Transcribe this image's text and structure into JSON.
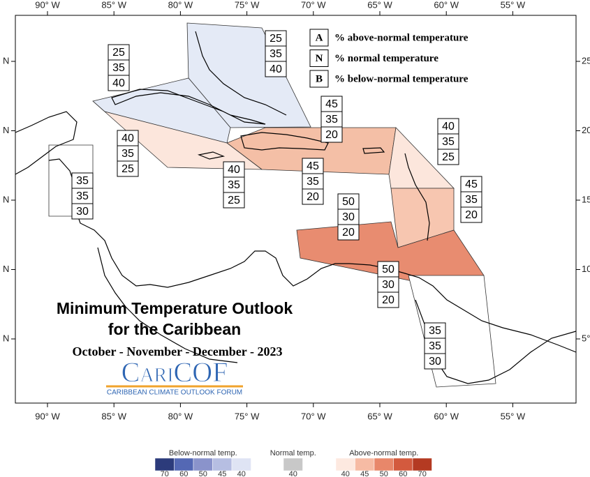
{
  "map": {
    "lon_labels": [
      "90° W",
      "85° W",
      "80° W",
      "75° W",
      "70° W",
      "65° W",
      "60° W",
      "55° W"
    ],
    "lat_labels_left": [
      "N",
      "N",
      "N",
      "N",
      "N"
    ],
    "lat_labels_right": [
      "25",
      "20",
      "15",
      "10",
      "5°"
    ],
    "key": [
      {
        "letter": "A",
        "text": "% above-normal temperature"
      },
      {
        "letter": "N",
        "text": "% normal temperature"
      },
      {
        "letter": "B",
        "text": "% below-normal temperature"
      }
    ],
    "regions": [
      {
        "values": [
          25,
          35,
          40
        ],
        "color": "#e4eaf6"
      },
      {
        "values": [
          25,
          35,
          40
        ],
        "color": "#e4eaf6"
      },
      {
        "values": [
          45,
          35,
          20
        ],
        "color": "#f4bfa6"
      },
      {
        "values": [
          40,
          35,
          25
        ],
        "color": "#fce6dc"
      },
      {
        "values": [
          40,
          35,
          25
        ],
        "color": "#fce6dc"
      },
      {
        "values": [
          40,
          35,
          25
        ],
        "color": "#fce6dc"
      },
      {
        "values": [
          45,
          35,
          20
        ],
        "color": "#f4bfa6"
      },
      {
        "values": [
          35,
          35,
          30
        ],
        "color": "#ffffff"
      },
      {
        "values": [
          45,
          35,
          20
        ],
        "color": "#f7c6b0"
      },
      {
        "values": [
          50,
          30,
          20
        ],
        "color": "#e88c70"
      },
      {
        "values": [
          50,
          30,
          20
        ],
        "color": "#e88c70"
      },
      {
        "values": [
          35,
          35,
          30
        ],
        "color": "#ffffff"
      }
    ],
    "title": "Minimum Temperature Outlook",
    "subtitle": "for the Caribbean",
    "period": "October - November - December - 2023",
    "logo": {
      "name": "CariCOF",
      "tagline": "CARIBBEAN CLIMATE OUTLOOK FORUM"
    },
    "colorbar": [
      {
        "label": "Below-normal temp.",
        "ticks": [
          70,
          60,
          50,
          45,
          40
        ],
        "colors": [
          "#2c3b7b",
          "#5468b4",
          "#8a93cb",
          "#b6bee2",
          "#dfe4f4"
        ]
      },
      {
        "label": "Normal temp.",
        "ticks": [
          40
        ],
        "colors": [
          "#c8c8c8"
        ]
      },
      {
        "label": "Above-normal temp.",
        "ticks": [
          40,
          45,
          50,
          60,
          70
        ],
        "colors": [
          "#fde9e0",
          "#f6bba4",
          "#e8876a",
          "#d35a3e",
          "#b43a22"
        ]
      }
    ]
  }
}
